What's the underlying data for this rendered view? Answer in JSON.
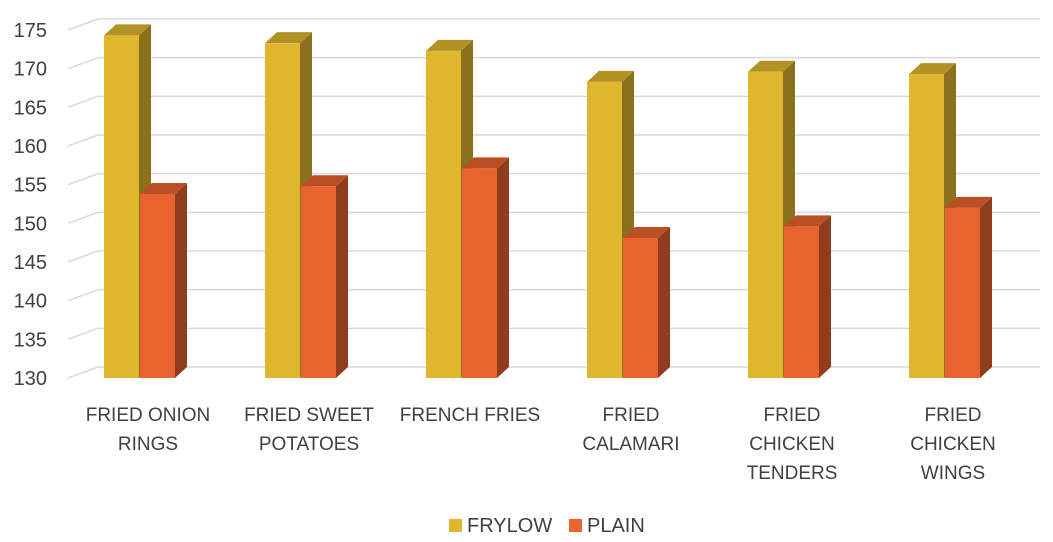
{
  "chart_data": {
    "type": "bar",
    "title": "",
    "xlabel": "",
    "ylabel": "",
    "ylim": [
      130,
      175
    ],
    "yticks": [
      130,
      135,
      140,
      145,
      150,
      155,
      160,
      165,
      170,
      175
    ],
    "grid": true,
    "legend_position": "bottom",
    "categories": [
      [
        "FRIED ONION",
        "RINGS"
      ],
      [
        "FRIED SWEET",
        "POTATOES"
      ],
      [
        "FRENCH FRIES"
      ],
      [
        "FRIED",
        "CALAMARI"
      ],
      [
        "FRIED",
        "CHICKEN",
        "TENDERS"
      ],
      [
        "FRIED",
        "CHICKEN",
        "WINGS"
      ]
    ],
    "series": [
      {
        "name": "FRYLOW",
        "color": "#E0B62E",
        "values": [
          174.3,
          173.3,
          172.3,
          168.3,
          169.6,
          169.3
        ]
      },
      {
        "name": "PLAIN",
        "color": "#E8632E",
        "values": [
          153.8,
          154.8,
          157.1,
          148.1,
          149.6,
          152.0
        ]
      }
    ]
  }
}
